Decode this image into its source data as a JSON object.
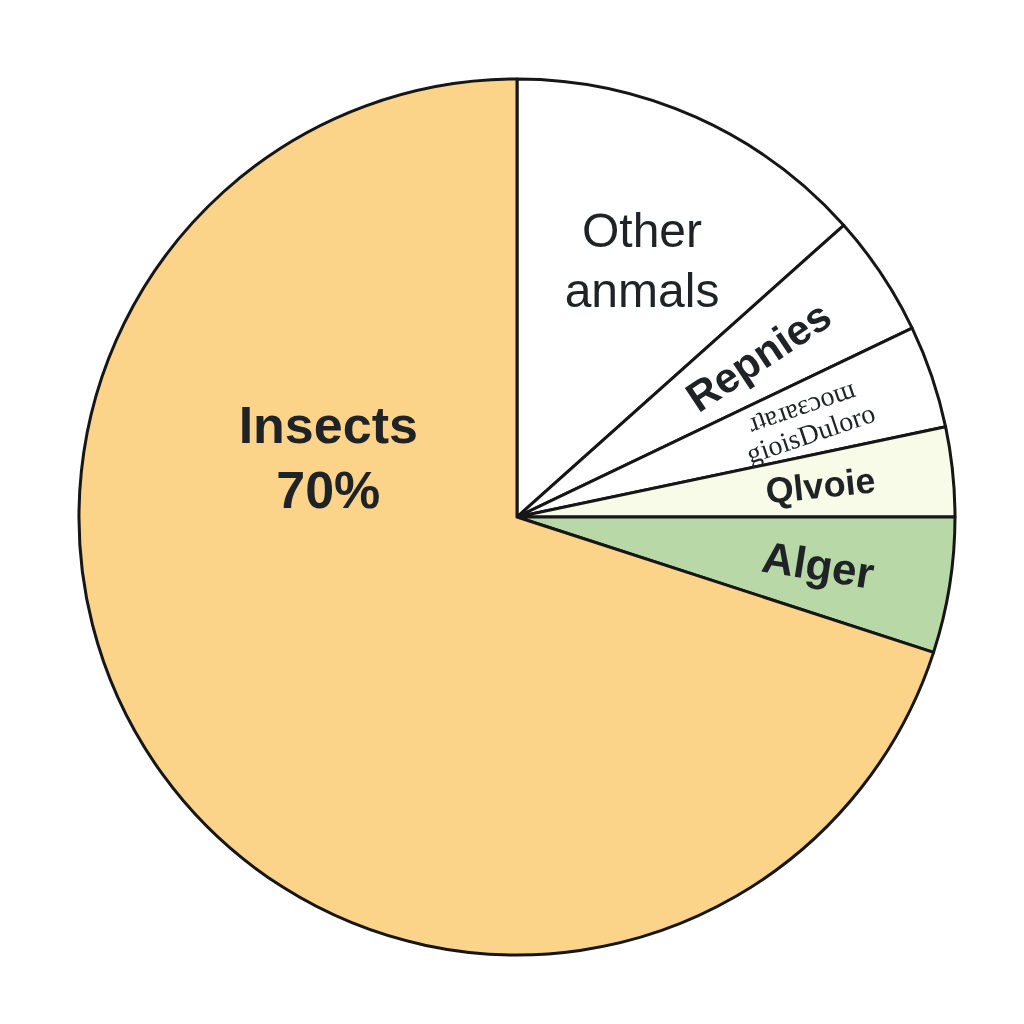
{
  "chart_data": {
    "type": "pie",
    "categories": [
      "Other anmals",
      "Repnies",
      "gioisDuloro ɹʇɐɹɐɛɔoɯ",
      "Qlvoie",
      "Alger",
      "Insects"
    ],
    "values": [
      13.4,
      4.5,
      3.8,
      3.3,
      5,
      70
    ],
    "colors": [
      "#ffffff",
      "#ffffff",
      "#ffffff",
      "#f7fbe8",
      "#b8d8a8",
      "#fbd48a"
    ],
    "value_labels": [
      null,
      null,
      null,
      null,
      null,
      "70%"
    ]
  }
}
